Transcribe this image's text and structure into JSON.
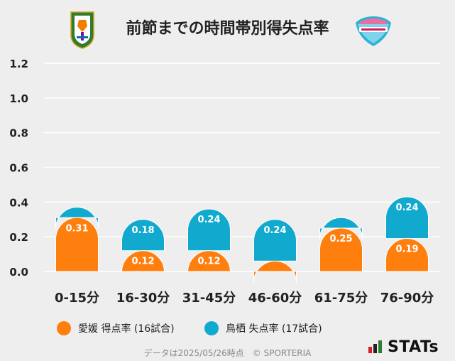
{
  "header": {
    "title": "前節までの時間帯別得失点率"
  },
  "colors": {
    "team1": "#ff7f0e",
    "team2": "#12a9cf",
    "grid": "#ffffff",
    "background": "#eeeeee"
  },
  "legend": {
    "item1": "愛媛 得点率 (16試合)",
    "item2": "鳥栖 失点率 (17試合)"
  },
  "footer": {
    "source": "データは2025/05/26時点　© SPORTERIA",
    "brand": "STATs"
  },
  "chart_data": {
    "type": "bar",
    "title": "前節までの時間帯別得失点率",
    "categories": [
      "0-15分",
      "16-30分",
      "31-45分",
      "46-60分",
      "61-75分",
      "76-90分"
    ],
    "series": [
      {
        "name": "愛媛 得点率 (16試合)",
        "values": [
          0.31,
          0.12,
          0.12,
          0.06,
          0.25,
          0.19
        ],
        "labels": [
          "0.31",
          "0.12",
          "0.12",
          "",
          "0.25",
          "0.19"
        ]
      },
      {
        "name": "鳥栖 失点率 (17試合)",
        "values": [
          0.06,
          0.18,
          0.24,
          0.24,
          0.06,
          0.24
        ],
        "labels": [
          "",
          "0.18",
          "0.24",
          "0.24",
          "",
          "0.24"
        ]
      }
    ],
    "ylim": [
      0,
      1.2
    ],
    "yticks": [
      "0.0",
      "0.2",
      "0.4",
      "0.6",
      "0.8",
      "1.0",
      "1.2"
    ],
    "grid": true,
    "stacked": true,
    "xlabel": "",
    "ylabel": ""
  }
}
